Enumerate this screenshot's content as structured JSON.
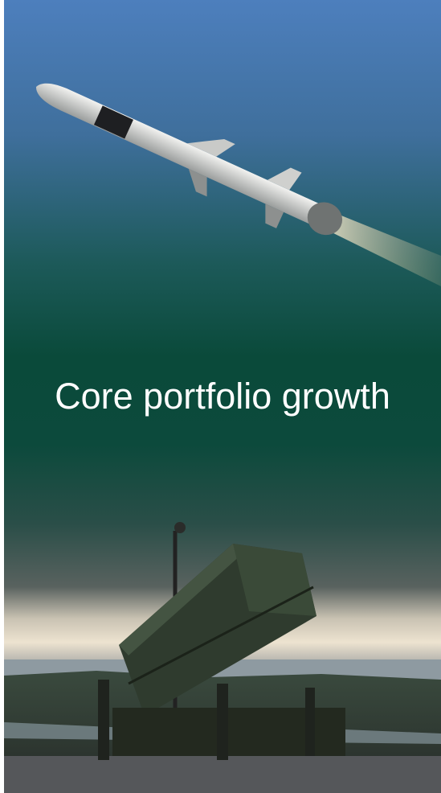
{
  "title": "Core portfolio growth"
}
